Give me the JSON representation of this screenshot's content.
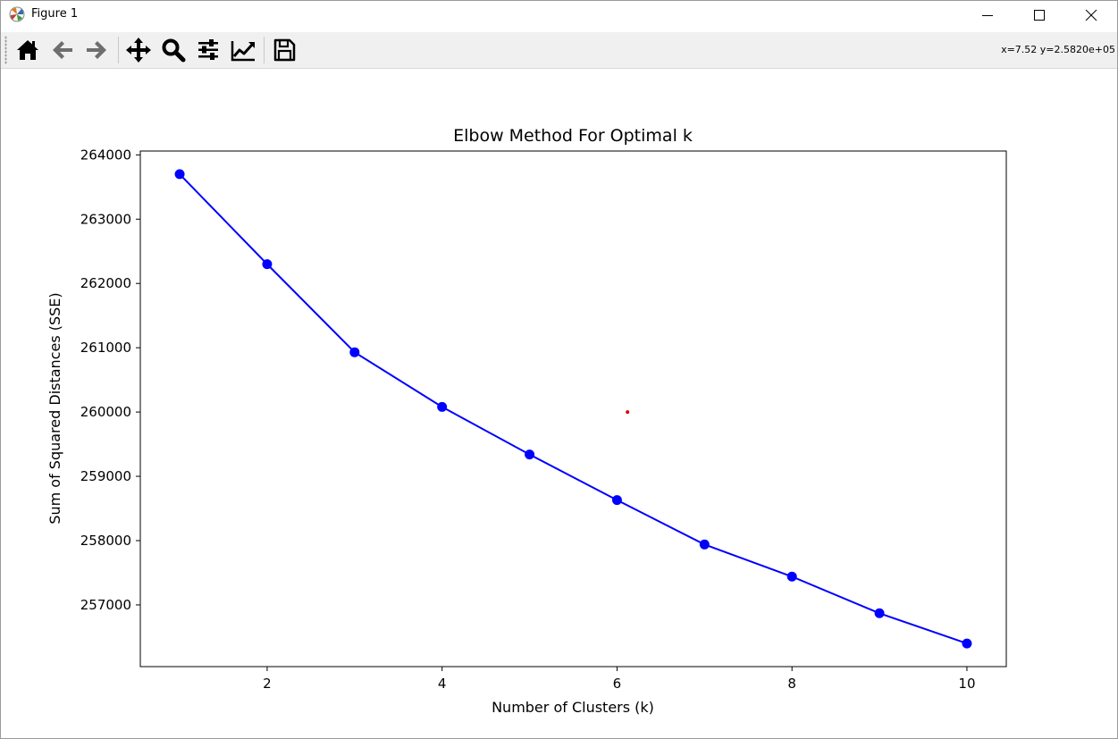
{
  "window": {
    "title": "Figure 1",
    "app_icon": "matplotlib-icon",
    "minimize_icon": "minimize-icon",
    "maximize_icon": "maximize-icon",
    "close_icon": "close-icon"
  },
  "toolbar": {
    "items": [
      {
        "name": "home-button",
        "icon": "home-icon"
      },
      {
        "name": "back-button",
        "icon": "arrow-left-icon"
      },
      {
        "name": "forward-button",
        "icon": "arrow-right-icon"
      },
      {
        "name": "pan-button",
        "icon": "move-icon"
      },
      {
        "name": "zoom-button",
        "icon": "magnifier-icon"
      },
      {
        "name": "configure-subplots-button",
        "icon": "sliders-icon"
      },
      {
        "name": "edit-axes-button",
        "icon": "line-chart-icon"
      },
      {
        "name": "save-button",
        "icon": "floppy-disk-icon"
      }
    ],
    "coordinates": "x=7.52 y=2.5820e+05"
  },
  "chart_data": {
    "type": "line",
    "title": "Elbow Method For Optimal k",
    "xlabel": "Number of Clusters (k)",
    "ylabel": "Sum of Squared Distances (SSE)",
    "xlim": [
      0.55,
      10.45
    ],
    "ylim": [
      256040,
      264060
    ],
    "x_ticks": [
      2,
      4,
      6,
      8,
      10
    ],
    "y_ticks": [
      257000,
      258000,
      259000,
      260000,
      261000,
      262000,
      263000,
      264000
    ],
    "grid": false,
    "series": [
      {
        "x": [
          1,
          2,
          3,
          4,
          5,
          6,
          7,
          8,
          9,
          10
        ],
        "values": [
          263700,
          262300,
          260930,
          260080,
          259340,
          258630,
          257940,
          257440,
          256870,
          256400
        ],
        "color": "#0000ff",
        "marker": "circle"
      }
    ],
    "annotations": [
      {
        "type": "point",
        "x": 6.12,
        "y": 260000,
        "color": "#e00000"
      }
    ]
  }
}
